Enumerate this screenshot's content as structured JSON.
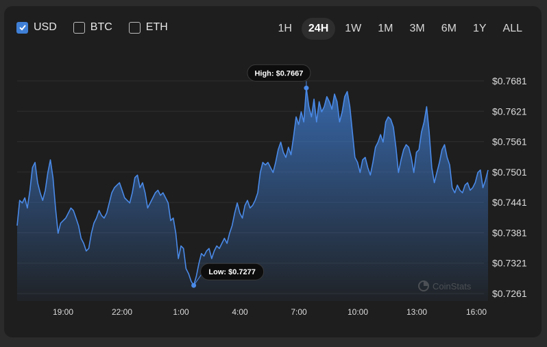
{
  "currencies": [
    {
      "label": "USD",
      "checked": true
    },
    {
      "label": "BTC",
      "checked": false
    },
    {
      "label": "ETH",
      "checked": false
    }
  ],
  "ranges": [
    {
      "label": "1H",
      "active": false
    },
    {
      "label": "24H",
      "active": true
    },
    {
      "label": "1W",
      "active": false
    },
    {
      "label": "1M",
      "active": false
    },
    {
      "label": "3M",
      "active": false
    },
    {
      "label": "6M",
      "active": false
    },
    {
      "label": "1Y",
      "active": false
    },
    {
      "label": "ALL",
      "active": false
    }
  ],
  "watermark": "CoinStats",
  "colors": {
    "line": "#4a8ae8",
    "accent": "#3f7fd6"
  },
  "chart_data": {
    "type": "area",
    "x_ticks": [
      "19:00",
      "22:00",
      "1:00",
      "4:00",
      "7:00",
      "10:00",
      "13:00",
      "16:00"
    ],
    "y_ticks": [
      "$0.7681",
      "$0.7621",
      "$0.7561",
      "$0.7501",
      "$0.7441",
      "$0.7381",
      "$0.7321",
      "$0.7261"
    ],
    "ylim": [
      0.7261,
      0.7681
    ],
    "high": {
      "label": "High: $0.7667",
      "value": 0.7667
    },
    "low": {
      "label": "Low: $0.7277",
      "value": 0.7277
    },
    "grid": true,
    "series": [
      {
        "values": [
          0.7395,
          0.7445,
          0.744,
          0.745,
          0.743,
          0.7465,
          0.751,
          0.752,
          0.748,
          0.746,
          0.7445,
          0.7465,
          0.75,
          0.7525,
          0.749,
          0.743,
          0.738,
          0.74,
          0.7405,
          0.741,
          0.742,
          0.743,
          0.7425,
          0.741,
          0.7395,
          0.737,
          0.736,
          0.7345,
          0.735,
          0.738,
          0.74,
          0.741,
          0.7425,
          0.7415,
          0.741,
          0.742,
          0.744,
          0.746,
          0.747,
          0.7475,
          0.748,
          0.7465,
          0.745,
          0.7445,
          0.744,
          0.746,
          0.749,
          0.7495,
          0.747,
          0.748,
          0.746,
          0.743,
          0.744,
          0.745,
          0.746,
          0.7465,
          0.7455,
          0.746,
          0.745,
          0.744,
          0.7405,
          0.741,
          0.738,
          0.733,
          0.7355,
          0.735,
          0.731,
          0.73,
          0.7285,
          0.7277,
          0.7295,
          0.732,
          0.734,
          0.7335,
          0.7345,
          0.735,
          0.733,
          0.7345,
          0.7355,
          0.735,
          0.736,
          0.737,
          0.736,
          0.738,
          0.7395,
          0.742,
          0.744,
          0.742,
          0.741,
          0.7435,
          0.7445,
          0.743,
          0.7435,
          0.7445,
          0.746,
          0.75,
          0.752,
          0.7515,
          0.752,
          0.751,
          0.75,
          0.752,
          0.7545,
          0.756,
          0.754,
          0.753,
          0.755,
          0.7535,
          0.757,
          0.761,
          0.7595,
          0.762,
          0.76,
          0.7667,
          0.763,
          0.761,
          0.7645,
          0.76,
          0.764,
          0.762,
          0.763,
          0.765,
          0.764,
          0.7625,
          0.7655,
          0.764,
          0.76,
          0.762,
          0.765,
          0.766,
          0.763,
          0.758,
          0.753,
          0.752,
          0.75,
          0.7525,
          0.753,
          0.751,
          0.7495,
          0.752,
          0.755,
          0.756,
          0.7575,
          0.756,
          0.76,
          0.761,
          0.7605,
          0.759,
          0.755,
          0.75,
          0.7525,
          0.7545,
          0.7555,
          0.755,
          0.753,
          0.75,
          0.754,
          0.7545,
          0.758,
          0.76,
          0.763,
          0.758,
          0.751,
          0.748,
          0.75,
          0.752,
          0.7545,
          0.7555,
          0.753,
          0.7515,
          0.747,
          0.746,
          0.7475,
          0.7465,
          0.746,
          0.7475,
          0.748,
          0.7465,
          0.747,
          0.748,
          0.75,
          0.7505,
          0.747,
          0.7485,
          0.7505
        ]
      }
    ]
  }
}
